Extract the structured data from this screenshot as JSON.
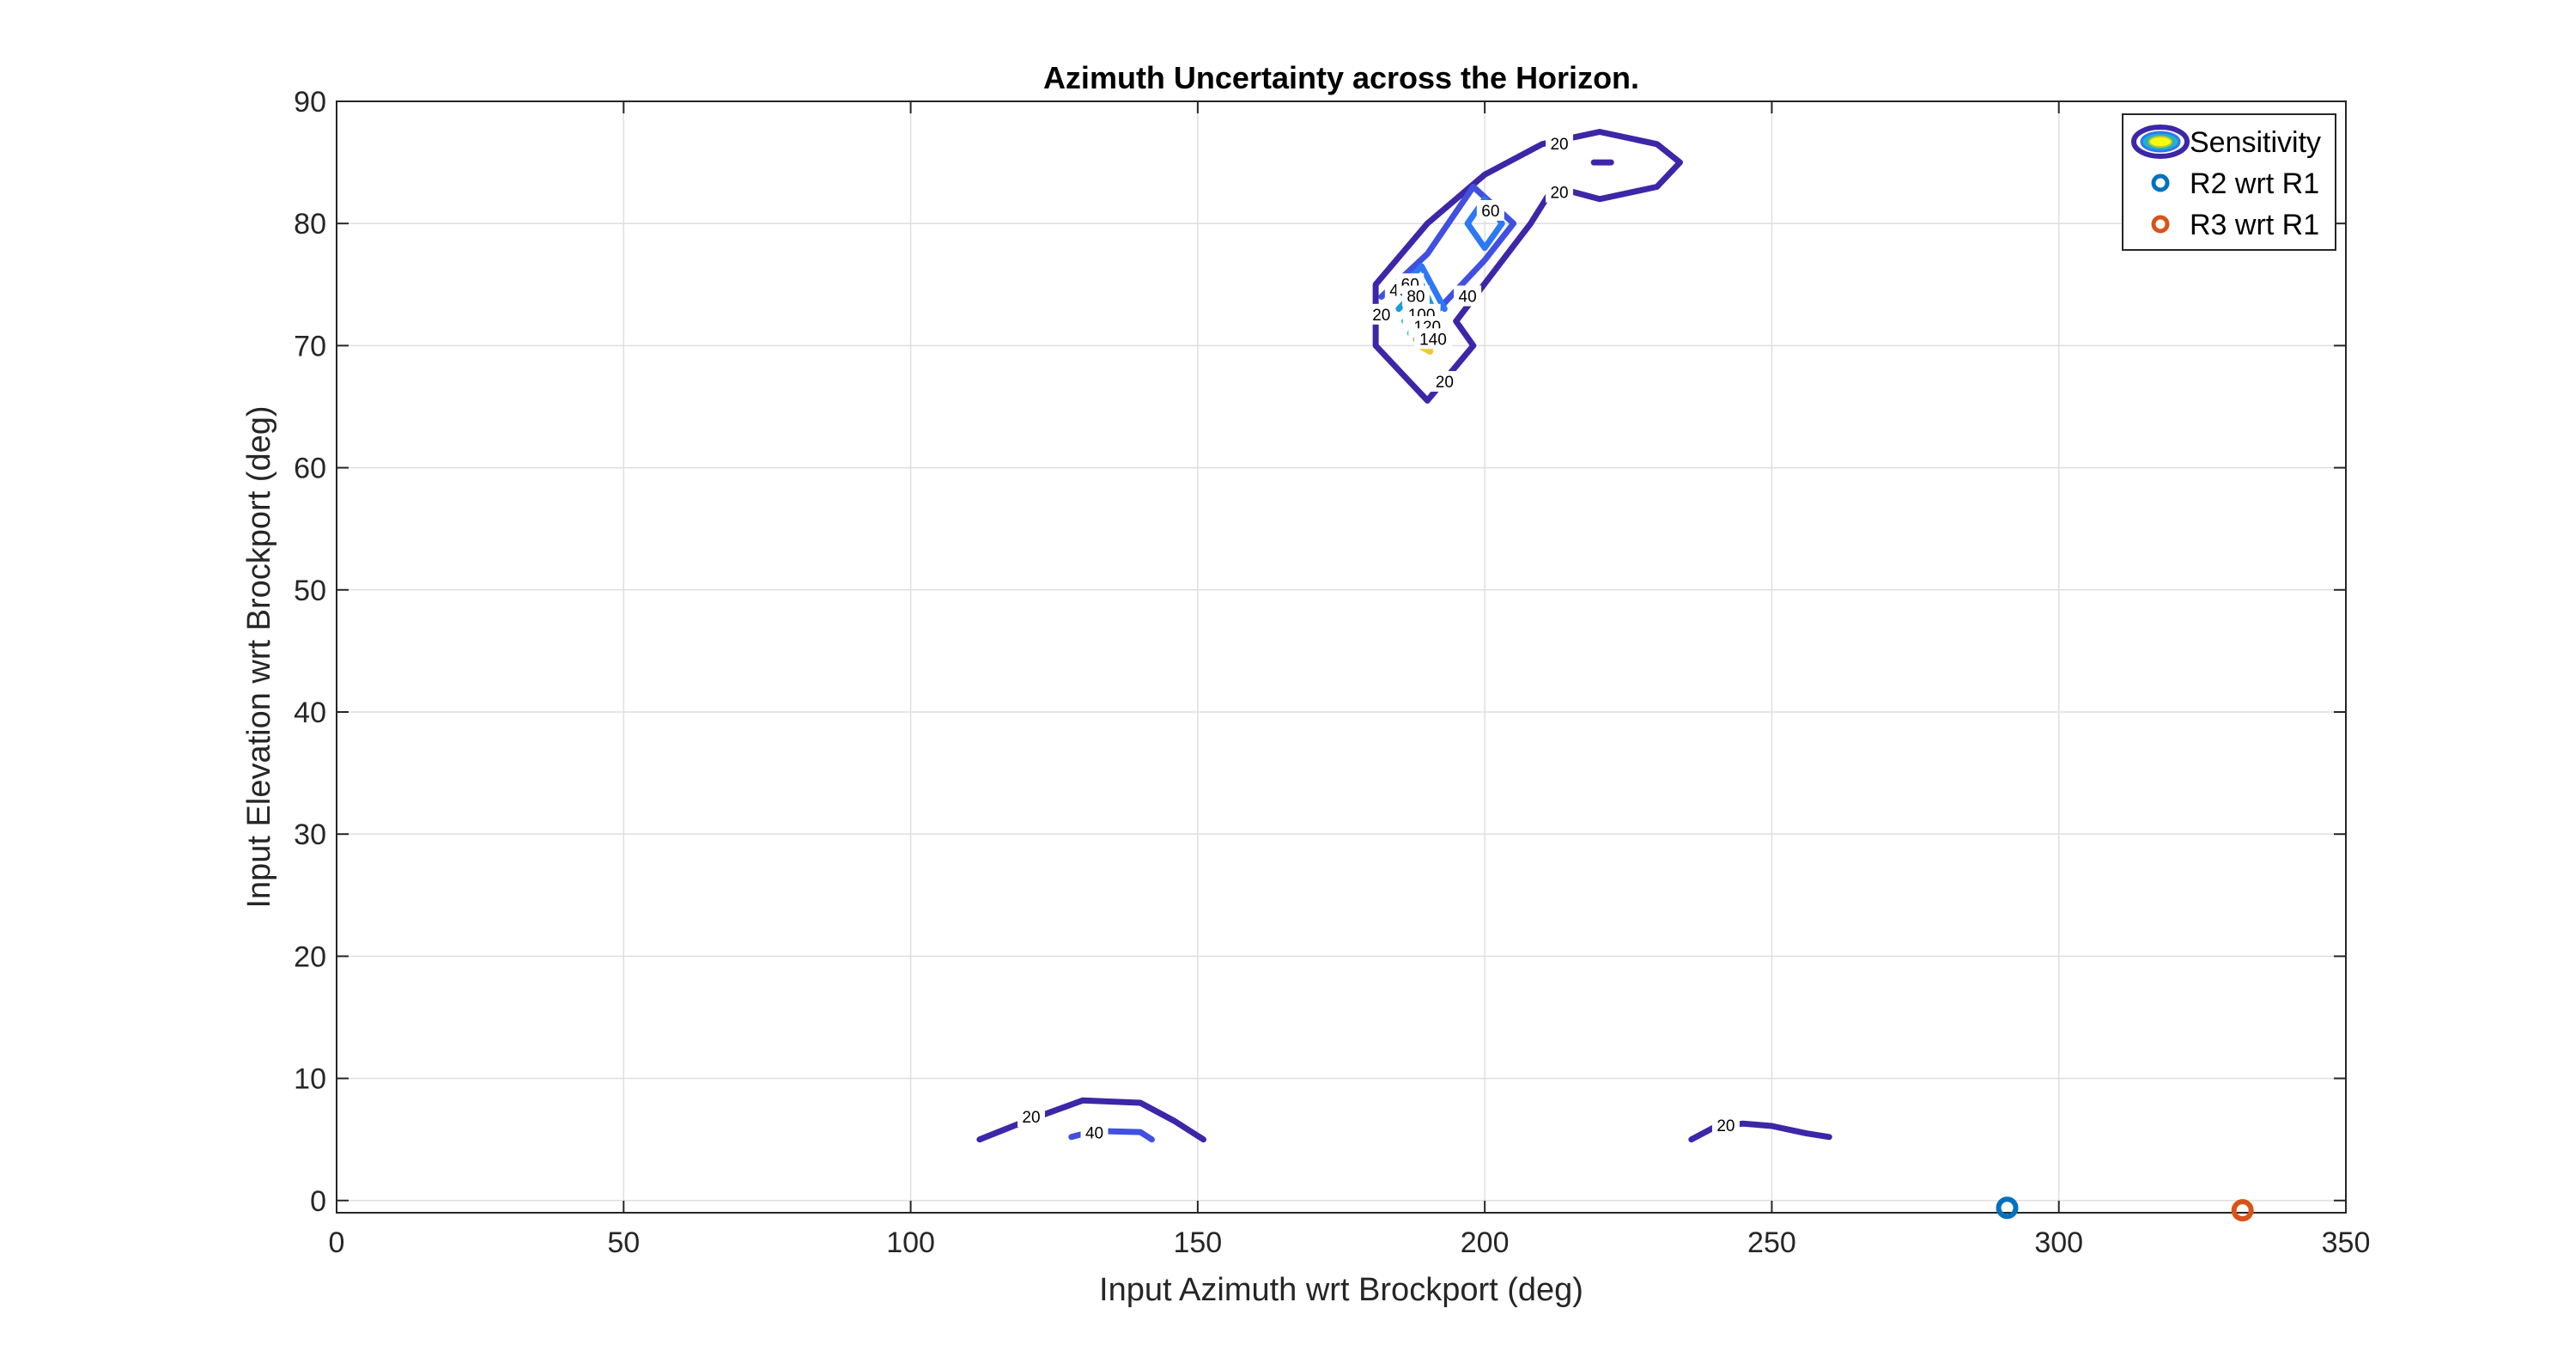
{
  "chart_data": {
    "type": "contour",
    "title": "Azimuth Uncertainty across the Horizon.",
    "xlabel": "Input Azimuth wrt Brockport (deg)",
    "ylabel": "Input Elevation wrt Brockport (deg)",
    "xlim": [
      0,
      350
    ],
    "ylim": [
      -1,
      90
    ],
    "xticks": [
      "0",
      "50",
      "100",
      "150",
      "200",
      "250",
      "300",
      "350"
    ],
    "yticks": [
      "0",
      "10",
      "20",
      "30",
      "40",
      "50",
      "60",
      "70",
      "80",
      "90"
    ],
    "grid": true,
    "legend": {
      "placement": "top-right",
      "entries": [
        {
          "label": "Sensitivity",
          "marker": "contour"
        },
        {
          "label": "R2 wrt R1",
          "marker": "circle",
          "color": "#0072BD"
        },
        {
          "label": "R3 wrt R1",
          "marker": "circle",
          "color": "#D95319"
        }
      ]
    },
    "contours": [
      {
        "level": 20,
        "color": "#3E26A8",
        "points": [
          [
            190,
            65.5
          ],
          [
            181,
            70
          ],
          [
            181,
            75
          ],
          [
            190,
            80
          ],
          [
            200,
            84
          ],
          [
            210,
            86.5
          ],
          [
            220,
            87.5
          ],
          [
            230,
            86.5
          ],
          [
            234,
            85
          ],
          [
            230,
            83
          ],
          [
            220,
            82
          ],
          [
            212,
            83
          ],
          [
            208,
            80
          ],
          [
            195,
            72
          ],
          [
            198,
            70
          ],
          [
            190,
            65.5
          ]
        ]
      },
      {
        "level": 20,
        "color": "#3E26A8",
        "points": [
          [
            219,
            85
          ],
          [
            222,
            85
          ]
        ]
      },
      {
        "level": 40,
        "color": "#4150E0",
        "points": [
          [
            182,
            74
          ],
          [
            190,
            77.5
          ],
          [
            198,
            83
          ],
          [
            205,
            80
          ],
          [
            200,
            77
          ],
          [
            191,
            72.5
          ]
        ]
      },
      {
        "level": 60,
        "color": "#2D78F4",
        "points": [
          [
            197,
            80
          ],
          [
            200,
            82
          ],
          [
            203,
            80
          ],
          [
            200,
            78
          ],
          [
            197,
            80
          ]
        ]
      },
      {
        "level": 60,
        "color": "#2D78F4",
        "points": [
          [
            184,
            74
          ],
          [
            189,
            76.5
          ],
          [
            193,
            73
          ]
        ]
      },
      {
        "level": 80,
        "color": "#1B9AE0",
        "points": [
          [
            185,
            73
          ],
          [
            189,
            75
          ],
          [
            192,
            72
          ]
        ]
      },
      {
        "level": 100,
        "color": "#0CB1C6",
        "points": [
          [
            186,
            72
          ],
          [
            189,
            74
          ],
          [
            191,
            71.5
          ]
        ]
      },
      {
        "level": 120,
        "color": "#3CBC9D",
        "points": [
          [
            187,
            71
          ],
          [
            189,
            73
          ],
          [
            191,
            70.5
          ]
        ]
      },
      {
        "level": 140,
        "color": "#A5BE6A",
        "points": [
          [
            188,
            70.5
          ],
          [
            189.5,
            72
          ],
          [
            190.5,
            70
          ]
        ]
      },
      {
        "level": 160,
        "color": "#F0C930",
        "points": [
          [
            188.5,
            70
          ],
          [
            190,
            71
          ],
          [
            190.5,
            69.5
          ],
          [
            188.5,
            70
          ]
        ]
      },
      {
        "level": 20,
        "color": "#3E26A8",
        "points": [
          [
            112,
            5
          ],
          [
            120,
            6.5
          ],
          [
            130,
            8.2
          ],
          [
            140,
            8
          ],
          [
            146,
            6.5
          ],
          [
            151,
            5
          ]
        ]
      },
      {
        "level": 40,
        "color": "#4150E0",
        "points": [
          [
            128,
            5.2
          ],
          [
            132,
            5.7
          ],
          [
            140,
            5.6
          ],
          [
            142,
            5
          ]
        ]
      },
      {
        "level": 20,
        "color": "#3E26A8",
        "points": [
          [
            236,
            5
          ],
          [
            240,
            6
          ],
          [
            245,
            6.3
          ],
          [
            250,
            6.1
          ],
          [
            256,
            5.5
          ],
          [
            260,
            5.2
          ]
        ]
      }
    ],
    "contour_labels": [
      {
        "text": "20",
        "x": 213,
        "y": 86.5
      },
      {
        "text": "20",
        "x": 213,
        "y": 82.5
      },
      {
        "text": "60",
        "x": 201,
        "y": 81
      },
      {
        "text": "40",
        "x": 197,
        "y": 74
      },
      {
        "text": "20",
        "x": 182,
        "y": 72.5
      },
      {
        "text": "40",
        "x": 185,
        "y": 74.5
      },
      {
        "text": "60",
        "x": 187,
        "y": 75
      },
      {
        "text": "80",
        "x": 188,
        "y": 74
      },
      {
        "text": "100",
        "x": 189,
        "y": 72.5
      },
      {
        "text": "120",
        "x": 190,
        "y": 71.5
      },
      {
        "text": "140",
        "x": 191,
        "y": 70.5
      },
      {
        "text": "20",
        "x": 193,
        "y": 67
      },
      {
        "text": "20",
        "x": 121,
        "y": 6.8
      },
      {
        "text": "40",
        "x": 132,
        "y": 5.5
      },
      {
        "text": "20",
        "x": 242,
        "y": 6.1
      }
    ],
    "series": [
      {
        "name": "R2 wrt R1",
        "color": "#0072BD",
        "x": [
          291
        ],
        "y": [
          -0.6
        ]
      },
      {
        "name": "R3 wrt R1",
        "color": "#D95319",
        "x": [
          332
        ],
        "y": [
          -0.8
        ]
      }
    ]
  }
}
